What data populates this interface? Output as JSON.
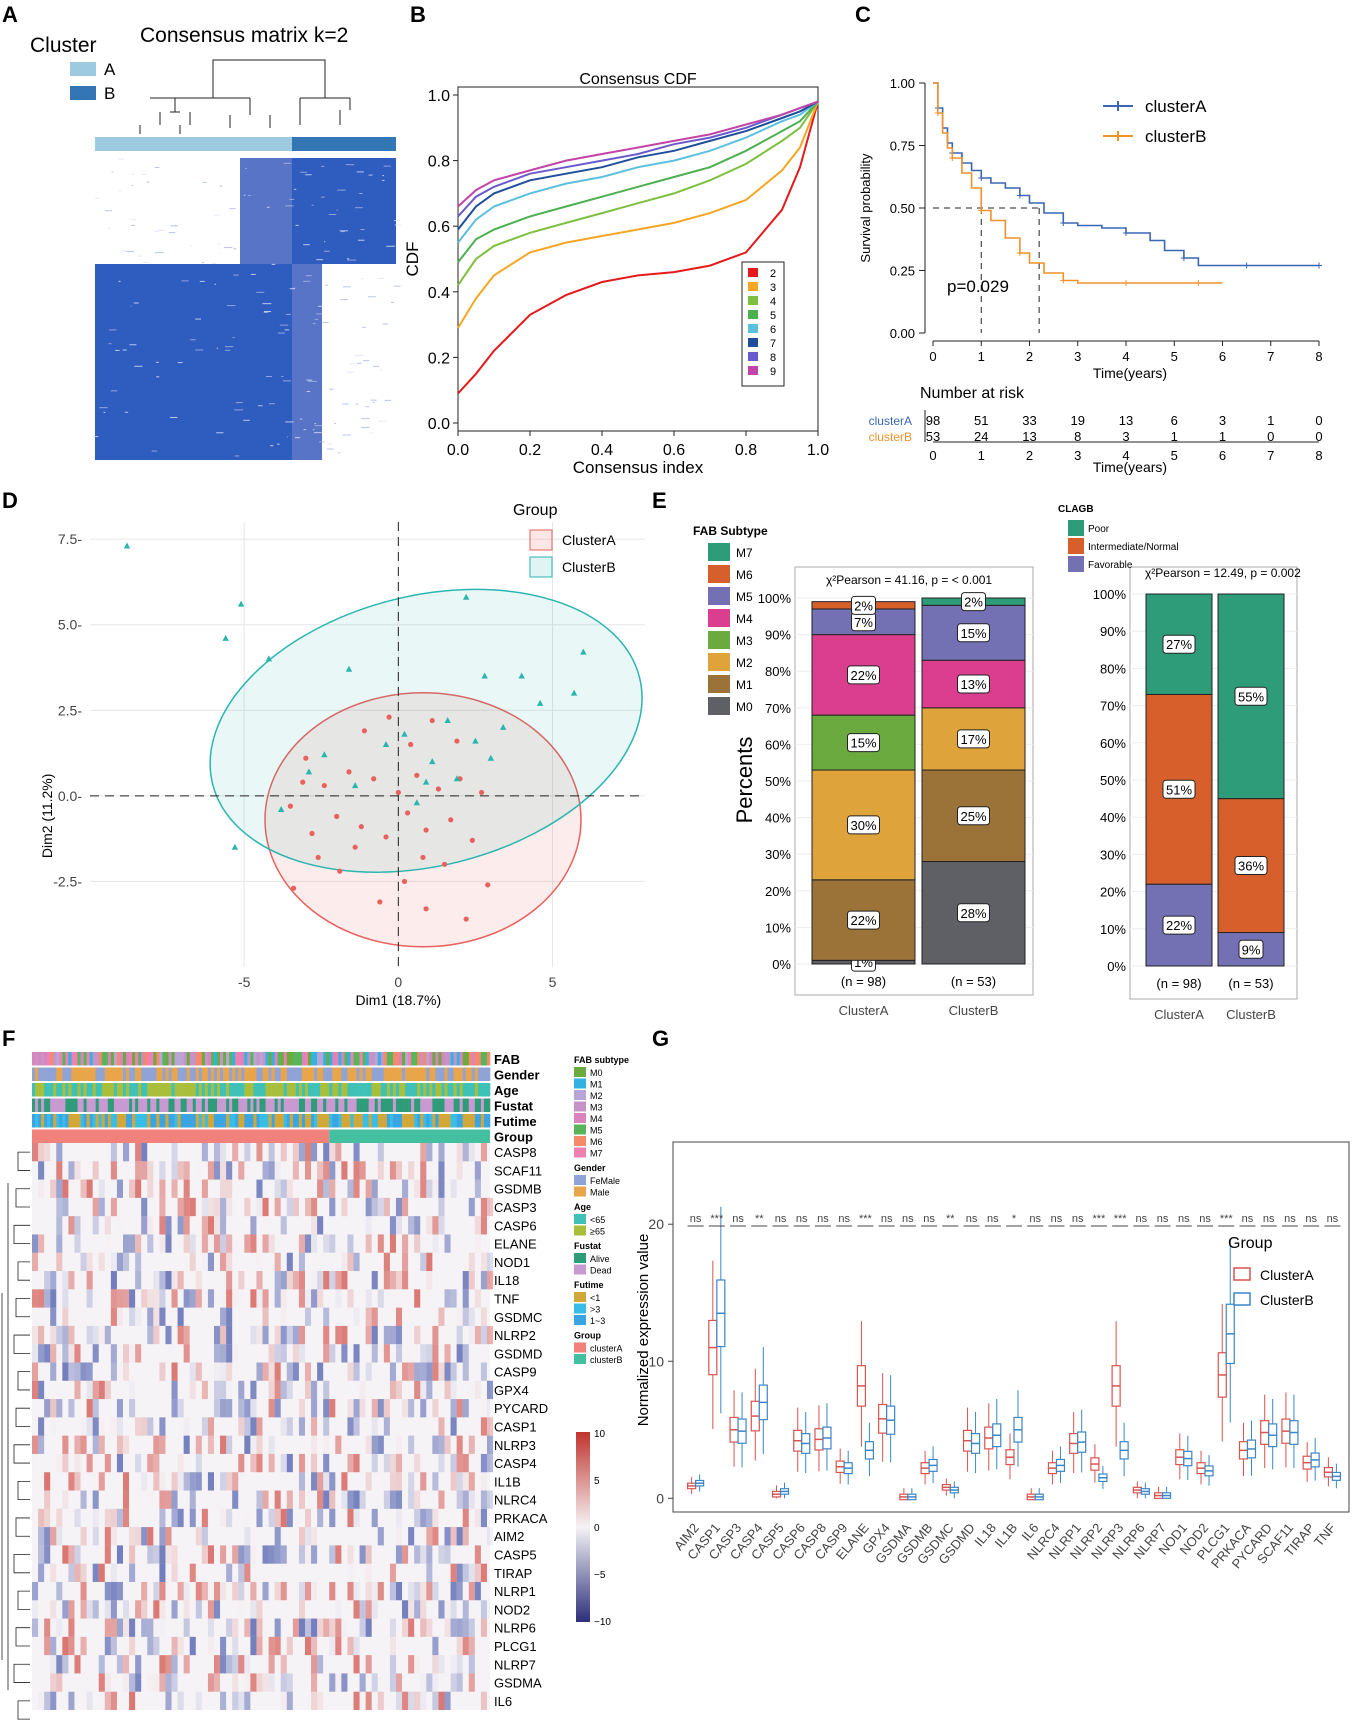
{
  "panel_letters": [
    "A",
    "B",
    "C",
    "D",
    "E",
    "F",
    "G"
  ],
  "colors": {
    "clusterA_light": "#9ecae1",
    "clusterB_dark": "#3476b5",
    "red": "#e86a6a",
    "teal": "#2bb5b0",
    "heat_blue": "#2c3e94",
    "heat_red": "#c0342e"
  },
  "chart_data": [
    {
      "id": "A",
      "type": "heatmap",
      "title": "Consensus matrix k=2",
      "legend_title": "Cluster",
      "legend": [
        {
          "label": "A",
          "color": "#9ecae1"
        },
        {
          "label": "B",
          "color": "#3476b5"
        }
      ]
    },
    {
      "id": "B",
      "type": "line",
      "title": "Consensus CDF",
      "xlabel": "Consensus index",
      "ylabel": "CDF",
      "xlim": [
        0,
        1
      ],
      "ylim": [
        0,
        1
      ],
      "xticks": [
        "0.0",
        "0.2",
        "0.4",
        "0.6",
        "0.8",
        "1.0"
      ],
      "yticks": [
        "0.0",
        "0.2",
        "0.4",
        "0.6",
        "0.8",
        "1.0"
      ],
      "x": [
        0,
        0.05,
        0.1,
        0.2,
        0.3,
        0.4,
        0.5,
        0.6,
        0.7,
        0.8,
        0.9,
        0.95,
        1.0
      ],
      "series": [
        {
          "name": "2",
          "color": "#e41a1c",
          "values": [
            0.09,
            0.15,
            0.22,
            0.33,
            0.39,
            0.43,
            0.45,
            0.46,
            0.48,
            0.52,
            0.65,
            0.78,
            0.98
          ]
        },
        {
          "name": "3",
          "color": "#f5a623",
          "values": [
            0.29,
            0.38,
            0.45,
            0.52,
            0.55,
            0.57,
            0.59,
            0.61,
            0.64,
            0.68,
            0.77,
            0.84,
            0.98
          ]
        },
        {
          "name": "4",
          "color": "#7fbf3f",
          "values": [
            0.42,
            0.5,
            0.54,
            0.58,
            0.61,
            0.64,
            0.67,
            0.7,
            0.74,
            0.79,
            0.86,
            0.9,
            0.98
          ]
        },
        {
          "name": "5",
          "color": "#4caf50",
          "values": [
            0.49,
            0.56,
            0.59,
            0.63,
            0.66,
            0.69,
            0.72,
            0.75,
            0.78,
            0.83,
            0.89,
            0.92,
            0.98
          ]
        },
        {
          "name": "6",
          "color": "#5bc0de",
          "values": [
            0.55,
            0.62,
            0.66,
            0.7,
            0.73,
            0.75,
            0.78,
            0.8,
            0.83,
            0.87,
            0.92,
            0.94,
            0.98
          ]
        },
        {
          "name": "7",
          "color": "#1f4e9c",
          "values": [
            0.59,
            0.66,
            0.7,
            0.74,
            0.76,
            0.78,
            0.81,
            0.83,
            0.86,
            0.89,
            0.93,
            0.95,
            0.98
          ]
        },
        {
          "name": "8",
          "color": "#6a5acd",
          "values": [
            0.63,
            0.69,
            0.72,
            0.76,
            0.78,
            0.8,
            0.82,
            0.85,
            0.87,
            0.9,
            0.94,
            0.96,
            0.98
          ]
        },
        {
          "name": "9",
          "color": "#c244a8",
          "values": [
            0.66,
            0.71,
            0.74,
            0.77,
            0.8,
            0.82,
            0.84,
            0.86,
            0.88,
            0.91,
            0.94,
            0.96,
            0.98
          ]
        }
      ]
    },
    {
      "id": "C",
      "type": "line",
      "xlabel": "Time(years)",
      "ylabel": "Survival probability",
      "xlim": [
        0,
        8
      ],
      "ylim": [
        0,
        1
      ],
      "xticks": [
        "0",
        "1",
        "2",
        "3",
        "4",
        "5",
        "6",
        "7",
        "8"
      ],
      "yticks": [
        "0.00",
        "0.25",
        "0.50",
        "0.75",
        "1.00"
      ],
      "pvalue": "p=0.029",
      "series": [
        {
          "name": "clusterA",
          "color": "#3a67b3",
          "x": [
            0,
            0.1,
            0.2,
            0.3,
            0.4,
            0.6,
            0.8,
            1.0,
            1.2,
            1.5,
            1.8,
            2.0,
            2.3,
            2.7,
            3.0,
            3.5,
            4.0,
            4.5,
            4.8,
            5.2,
            5.5,
            6.0,
            6.5,
            7.0,
            7.5,
            8.0
          ],
          "values": [
            1.0,
            0.9,
            0.82,
            0.76,
            0.72,
            0.68,
            0.65,
            0.62,
            0.6,
            0.58,
            0.55,
            0.52,
            0.48,
            0.44,
            0.43,
            0.42,
            0.4,
            0.37,
            0.33,
            0.3,
            0.27,
            0.27,
            0.27,
            0.27,
            0.27,
            0.27
          ]
        },
        {
          "name": "clusterB",
          "color": "#f0922b",
          "x": [
            0,
            0.1,
            0.2,
            0.3,
            0.4,
            0.6,
            0.8,
            1.0,
            1.2,
            1.5,
            1.8,
            2.0,
            2.3,
            2.7,
            3.0,
            3.5,
            4.0,
            4.5,
            5.0,
            5.5,
            6.0
          ],
          "values": [
            1.0,
            0.88,
            0.8,
            0.74,
            0.7,
            0.64,
            0.58,
            0.49,
            0.45,
            0.38,
            0.32,
            0.28,
            0.24,
            0.21,
            0.2,
            0.2,
            0.2,
            0.2,
            0.2,
            0.2,
            0.2
          ]
        }
      ],
      "risk_table": {
        "title": "Number at risk",
        "rows": [
          {
            "name": "clusterA",
            "values": [
              "98",
              "51",
              "33",
              "19",
              "13",
              "6",
              "3",
              "1",
              "0"
            ]
          },
          {
            "name": "clusterB",
            "values": [
              "53",
              "24",
              "13",
              "8",
              "3",
              "1",
              "1",
              "0",
              "0"
            ]
          }
        ]
      }
    },
    {
      "id": "D",
      "type": "scatter",
      "xlabel": "Dim1 (18.7%)",
      "ylabel": "Dim2 (11.2%)",
      "xlim": [
        -10,
        8
      ],
      "ylim": [
        -5,
        8
      ],
      "xticks": [
        "-5",
        "0",
        "5"
      ],
      "yticks": [
        "-2.5",
        "0.0",
        "2.5",
        "5.0",
        "7.5"
      ],
      "legend_title": "Group",
      "series": [
        {
          "name": "ClusterA",
          "color": "#e8615d",
          "points": [
            [
              -3.5,
              -0.3
            ],
            [
              -3.1,
              0.4
            ],
            [
              -2.8,
              -1.1
            ],
            [
              -2.4,
              0.3
            ],
            [
              -2.0,
              -0.6
            ],
            [
              -1.6,
              0.7
            ],
            [
              -1.2,
              -0.9
            ],
            [
              -0.8,
              0.5
            ],
            [
              -0.4,
              -1.2
            ],
            [
              0,
              0.1
            ],
            [
              0.3,
              -0.5
            ],
            [
              0.6,
              0.6
            ],
            [
              0.9,
              -1.0
            ],
            [
              1.3,
              0.2
            ],
            [
              1.7,
              -0.7
            ],
            [
              2.0,
              0.5
            ],
            [
              2.4,
              -1.3
            ],
            [
              2.7,
              0.1
            ],
            [
              -1.9,
              -2.2
            ],
            [
              -0.6,
              -3.1
            ],
            [
              0.2,
              -2.5
            ],
            [
              0.9,
              -3.3
            ],
            [
              1.5,
              -2.0
            ],
            [
              2.2,
              -3.6
            ],
            [
              -2.6,
              -1.8
            ],
            [
              -3.0,
              1.1
            ],
            [
              -1.1,
              1.9
            ],
            [
              0.4,
              1.5
            ],
            [
              1.1,
              2.2
            ],
            [
              1.9,
              1.6
            ],
            [
              -0.3,
              2.3
            ],
            [
              0.8,
              -1.8
            ],
            [
              -1.4,
              -1.5
            ],
            [
              2.9,
              -2.6
            ],
            [
              -3.4,
              -2.7
            ]
          ]
        },
        {
          "name": "ClusterB",
          "color": "#2bb5b0",
          "points": [
            [
              -8.8,
              7.3
            ],
            [
              -5.6,
              4.6
            ],
            [
              -5.1,
              5.6
            ],
            [
              -4.2,
              4.0
            ],
            [
              -2.4,
              1.2
            ],
            [
              -1.6,
              3.7
            ],
            [
              -1.4,
              0.3
            ],
            [
              -0.4,
              1.5
            ],
            [
              0.2,
              1.8
            ],
            [
              0.6,
              -0.2
            ],
            [
              1.1,
              1.0
            ],
            [
              1.6,
              2.2
            ],
            [
              1.9,
              0.5
            ],
            [
              2.5,
              1.6
            ],
            [
              2.8,
              3.5
            ],
            [
              3.0,
              1.1
            ],
            [
              3.4,
              2.0
            ],
            [
              4.0,
              3.5
            ],
            [
              4.6,
              2.7
            ],
            [
              5.7,
              3.0
            ],
            [
              6.0,
              4.2
            ],
            [
              2.2,
              5.8
            ],
            [
              -5.3,
              -1.5
            ],
            [
              -3.8,
              -0.4
            ],
            [
              -2.9,
              0.7
            ],
            [
              0.9,
              0.4
            ]
          ]
        }
      ]
    },
    {
      "id": "E1",
      "type": "bar",
      "legend_title": "FAB Subtype",
      "ylabel": "Percents",
      "stat": "χ²Pearson = 41.16, p = < 0.001",
      "categories": [
        "ClusterA",
        "ClusterB"
      ],
      "n_labels": [
        "(n = 98)",
        "(n = 53)"
      ],
      "yticks": [
        "0%",
        "10%",
        "20%",
        "30%",
        "40%",
        "50%",
        "60%",
        "70%",
        "80%",
        "90%",
        "100%"
      ],
      "series": [
        {
          "name": "M0",
          "color": "#5e6066",
          "values": [
            1,
            28
          ]
        },
        {
          "name": "M1",
          "color": "#9b7237",
          "values": [
            22,
            25
          ]
        },
        {
          "name": "M2",
          "color": "#dea33a",
          "values": [
            30,
            17
          ]
        },
        {
          "name": "M3",
          "color": "#6aaa3f",
          "values": [
            15,
            0
          ]
        },
        {
          "name": "M4",
          "color": "#dc3e8f",
          "values": [
            22,
            13
          ]
        },
        {
          "name": "M5",
          "color": "#7470b4",
          "values": [
            7,
            15
          ]
        },
        {
          "name": "M6",
          "color": "#d65f2c",
          "values": [
            2,
            0
          ]
        },
        {
          "name": "M7",
          "color": "#2e9c79",
          "values": [
            0,
            2
          ]
        }
      ],
      "labels": [
        [
          "1%",
          "22%",
          "30%",
          "15%",
          "22%",
          "7%",
          "2%",
          ""
        ],
        [
          "28%",
          "25%",
          "17%",
          "",
          "13%",
          "15%",
          "",
          "2%"
        ]
      ]
    },
    {
      "id": "E2",
      "type": "bar",
      "legend_title": "CLAGB",
      "stat": "χ²Pearson = 12.49, p = 0.002",
      "categories": [
        "ClusterA",
        "ClusterB"
      ],
      "n_labels": [
        "(n = 98)",
        "(n = 53)"
      ],
      "series": [
        {
          "name": "Favorable",
          "color": "#7470b4",
          "values": [
            22,
            9
          ]
        },
        {
          "name": "Intermediate/Normal",
          "color": "#d65f2c",
          "values": [
            51,
            36
          ]
        },
        {
          "name": "Poor",
          "color": "#2e9c79",
          "values": [
            27,
            55
          ]
        }
      ],
      "labels": [
        [
          "22%",
          "51%",
          "27%"
        ],
        [
          "9%",
          "36%",
          "55%"
        ]
      ]
    },
    {
      "id": "F",
      "type": "heatmap",
      "annotation_rows": [
        "FAB",
        "Gender",
        "Age",
        "Fustat",
        "Futime",
        "Group"
      ],
      "genes": [
        "CASP8",
        "SCAF11",
        "GSDMB",
        "CASP3",
        "CASP6",
        "ELANE",
        "NOD1",
        "IL18",
        "TNF",
        "GSDMC",
        "NLRP2",
        "GSDMD",
        "CASP9",
        "GPX4",
        "PYCARD",
        "CASP1",
        "NLRP3",
        "CASP4",
        "IL1B",
        "NLRC4",
        "PRKACA",
        "AIM2",
        "CASP5",
        "TIRAP",
        "NLRP1",
        "NOD2",
        "NLRP6",
        "PLCG1",
        "NLRP7",
        "GSDMA",
        "IL6"
      ],
      "legends": [
        {
          "title": "FAB subtype",
          "items": [
            [
              "M0",
              "#6aaa3f"
            ],
            [
              "M1",
              "#33b1e0"
            ],
            [
              "M2",
              "#b9a4d6"
            ],
            [
              "M3",
              "#c693c9"
            ],
            [
              "M4",
              "#d984be"
            ],
            [
              "M5",
              "#59b55a"
            ],
            [
              "M6",
              "#f58a6b"
            ],
            [
              "M7",
              "#f07fb2"
            ]
          ]
        },
        {
          "title": "Gender",
          "items": [
            [
              "FeMale",
              "#8fa3d6"
            ],
            [
              "Male",
              "#e8a54a"
            ]
          ]
        },
        {
          "title": "Age",
          "items": [
            [
              "<65",
              "#3fc1b7"
            ],
            [
              "≥65",
              "#a9bf3c"
            ]
          ]
        },
        {
          "title": "Fustat",
          "items": [
            [
              "Alive",
              "#2e9c79"
            ],
            [
              "Dead",
              "#c89ad1"
            ]
          ]
        },
        {
          "title": "Futime",
          "items": [
            [
              "<1",
              "#d1a73a"
            ],
            [
              ">3",
              "#38bde6"
            ],
            [
              "1~3",
              "#3aa5e2"
            ]
          ]
        },
        {
          "title": "Group",
          "items": [
            [
              "clusterA",
              "#f0817b"
            ],
            [
              "clusterB",
              "#44c0a0"
            ]
          ]
        }
      ],
      "scale": {
        "ticks": [
          "10",
          "5",
          "0",
          "−5",
          "−10"
        ]
      }
    },
    {
      "id": "G",
      "type": "box",
      "ylabel": "Normalized expression value",
      "yticks": [
        "0",
        "10",
        "20"
      ],
      "ylim": [
        -1,
        26
      ],
      "legend_title": "Group",
      "legend": [
        {
          "label": "ClusterA",
          "color": "#d9534f"
        },
        {
          "label": "ClusterB",
          "color": "#3a86c8"
        }
      ],
      "categories": [
        "AIM2",
        "CASP1",
        "CASP3",
        "CASP4",
        "CASP5",
        "CASP6",
        "CASP8",
        "CASP9",
        "ELANE",
        "GPX4",
        "GSDMA",
        "GSDMB",
        "GSDMC",
        "GSDMD",
        "IL18",
        "IL1B",
        "IL6",
        "NLRC4",
        "NLRP1",
        "NLRP2",
        "NLRP3",
        "NLRP6",
        "NLRP7",
        "NOD1",
        "NOD2",
        "PLCG1",
        "PRKACA",
        "PYCARD",
        "SCAF11",
        "TIRAP",
        "TNF"
      ],
      "significance": [
        "ns",
        "***",
        "ns",
        "**",
        "ns",
        "ns",
        "ns",
        "ns",
        "***",
        "ns",
        "ns",
        "ns",
        "**",
        "ns",
        "ns",
        "*",
        "ns",
        "ns",
        "ns",
        "***",
        "***",
        "ns",
        "ns",
        "ns",
        "ns",
        "***",
        "ns",
        "ns",
        "ns",
        "ns",
        "ns"
      ],
      "medianA": [
        0.9,
        11,
        5,
        6,
        0.3,
        4.2,
        4.3,
        2.3,
        8.2,
        5.8,
        0.1,
        2.2,
        0.8,
        4.2,
        4.4,
        3,
        0.1,
        2.2,
        4,
        2.5,
        8.2,
        0.6,
        0.2,
        3,
        2.2,
        9,
        3.5,
        4.8,
        4.9,
        2.6,
        1.9
      ],
      "medianB": [
        1.1,
        13.5,
        4.9,
        7,
        0.5,
        4,
        4.4,
        2.2,
        3.5,
        5.7,
        0.1,
        2.4,
        0.6,
        4,
        4.6,
        5,
        0.1,
        2.4,
        4.1,
        1.5,
        3.5,
        0.5,
        0.2,
        2.9,
        2,
        12,
        3.6,
        4.6,
        4.8,
        2.8,
        1.6
      ]
    }
  ],
  "panelC_axis_labels": {
    "risk_x_label": "Time(years)"
  }
}
